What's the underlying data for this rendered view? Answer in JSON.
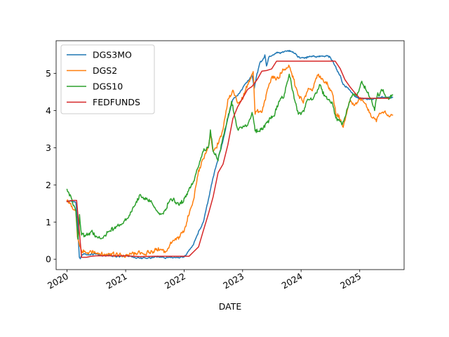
{
  "chart_data": {
    "type": "line",
    "title": "",
    "xlabel": "DATE",
    "ylabel": "",
    "xlim": [
      "2019-10-25",
      "2025-10-05"
    ],
    "ylim": [
      -0.28,
      5.88
    ],
    "x_ticks": [
      "2020",
      "2021",
      "2022",
      "2023",
      "2024",
      "2025"
    ],
    "y_ticks": [
      "0",
      "1",
      "2",
      "3",
      "4",
      "5"
    ],
    "grid": false,
    "legend_position": "upper left",
    "series": [
      {
        "name": "DGS3MO",
        "color": "#1f77b4",
        "points": [
          [
            "2020-01-01",
            1.55
          ],
          [
            "2020-02-01",
            1.56
          ],
          [
            "2020-02-25",
            1.52
          ],
          [
            "2020-03-06",
            1.1
          ],
          [
            "2020-03-12",
            0.5
          ],
          [
            "2020-03-18",
            0.05
          ],
          [
            "2020-03-24",
            0.01
          ],
          [
            "2020-04-01",
            0.09
          ],
          [
            "2020-04-15",
            0.15
          ],
          [
            "2020-05-01",
            0.12
          ],
          [
            "2020-06-01",
            0.15
          ],
          [
            "2020-08-01",
            0.1
          ],
          [
            "2020-10-01",
            0.1
          ],
          [
            "2020-12-01",
            0.08
          ],
          [
            "2021-01-15",
            0.08
          ],
          [
            "2021-03-01",
            0.04
          ],
          [
            "2021-04-15",
            0.02
          ],
          [
            "2021-06-01",
            0.04
          ],
          [
            "2021-08-01",
            0.05
          ],
          [
            "2021-10-01",
            0.05
          ],
          [
            "2021-11-15",
            0.05
          ],
          [
            "2022-01-01",
            0.06
          ],
          [
            "2022-02-01",
            0.25
          ],
          [
            "2022-03-01",
            0.4
          ],
          [
            "2022-04-01",
            0.75
          ],
          [
            "2022-05-01",
            1.0
          ],
          [
            "2022-06-01",
            1.6
          ],
          [
            "2022-07-01",
            2.2
          ],
          [
            "2022-08-01",
            2.7
          ],
          [
            "2022-09-01",
            3.2
          ],
          [
            "2022-10-01",
            3.8
          ],
          [
            "2022-11-01",
            4.3
          ],
          [
            "2022-12-01",
            4.4
          ],
          [
            "2023-01-01",
            4.6
          ],
          [
            "2023-02-01",
            4.8
          ],
          [
            "2023-03-01",
            4.95
          ],
          [
            "2023-03-15",
            4.6
          ],
          [
            "2023-04-01",
            5.0
          ],
          [
            "2023-04-20",
            5.3
          ],
          [
            "2023-05-05",
            5.35
          ],
          [
            "2023-05-20",
            5.5
          ],
          [
            "2023-05-30",
            5.2
          ],
          [
            "2023-06-15",
            5.45
          ],
          [
            "2023-07-01",
            5.47
          ],
          [
            "2023-08-01",
            5.55
          ],
          [
            "2023-09-01",
            5.56
          ],
          [
            "2023-10-01",
            5.6
          ],
          [
            "2023-10-20",
            5.62
          ],
          [
            "2023-11-15",
            5.55
          ],
          [
            "2023-12-15",
            5.45
          ],
          [
            "2024-01-15",
            5.42
          ],
          [
            "2024-02-15",
            5.45
          ],
          [
            "2024-03-15",
            5.46
          ],
          [
            "2024-04-15",
            5.45
          ],
          [
            "2024-05-15",
            5.46
          ],
          [
            "2024-06-15",
            5.48
          ],
          [
            "2024-07-15",
            5.35
          ],
          [
            "2024-08-01",
            5.2
          ],
          [
            "2024-08-15",
            5.05
          ],
          [
            "2024-09-01",
            4.95
          ],
          [
            "2024-09-15",
            4.75
          ],
          [
            "2024-10-01",
            4.65
          ],
          [
            "2024-11-01",
            4.55
          ],
          [
            "2024-12-01",
            4.38
          ],
          [
            "2025-01-01",
            4.32
          ],
          [
            "2025-02-01",
            4.32
          ],
          [
            "2025-03-01",
            4.3
          ],
          [
            "2025-04-01",
            4.32
          ],
          [
            "2025-05-01",
            4.35
          ],
          [
            "2025-06-01",
            4.36
          ],
          [
            "2025-07-01",
            4.35
          ],
          [
            "2025-07-25",
            4.36
          ]
        ]
      },
      {
        "name": "DGS2",
        "color": "#ff7f0e",
        "points": [
          [
            "2020-01-01",
            1.58
          ],
          [
            "2020-02-01",
            1.42
          ],
          [
            "2020-02-25",
            1.3
          ],
          [
            "2020-03-06",
            0.6
          ],
          [
            "2020-03-12",
            0.5
          ],
          [
            "2020-03-20",
            0.35
          ],
          [
            "2020-04-01",
            0.23
          ],
          [
            "2020-05-01",
            0.17
          ],
          [
            "2020-06-01",
            0.19
          ],
          [
            "2020-08-01",
            0.13
          ],
          [
            "2020-10-01",
            0.15
          ],
          [
            "2020-12-01",
            0.12
          ],
          [
            "2021-01-15",
            0.12
          ],
          [
            "2021-03-01",
            0.14
          ],
          [
            "2021-04-15",
            0.16
          ],
          [
            "2021-06-01",
            0.15
          ],
          [
            "2021-07-01",
            0.25
          ],
          [
            "2021-09-01",
            0.22
          ],
          [
            "2021-10-01",
            0.35
          ],
          [
            "2021-11-01",
            0.5
          ],
          [
            "2021-12-01",
            0.6
          ],
          [
            "2022-01-01",
            0.75
          ],
          [
            "2022-02-01",
            1.2
          ],
          [
            "2022-03-01",
            1.6
          ],
          [
            "2022-04-01",
            2.4
          ],
          [
            "2022-05-01",
            2.7
          ],
          [
            "2022-06-01",
            3.0
          ],
          [
            "2022-06-15",
            3.4
          ],
          [
            "2022-07-01",
            2.9
          ],
          [
            "2022-08-01",
            3.1
          ],
          [
            "2022-08-20",
            3.3
          ],
          [
            "2022-09-01",
            3.5
          ],
          [
            "2022-09-20",
            4.0
          ],
          [
            "2022-10-01",
            4.3
          ],
          [
            "2022-11-01",
            4.55
          ],
          [
            "2022-11-15",
            4.4
          ],
          [
            "2022-12-01",
            4.2
          ],
          [
            "2023-01-01",
            4.3
          ],
          [
            "2023-02-01",
            4.7
          ],
          [
            "2023-03-08",
            5.05
          ],
          [
            "2023-03-20",
            3.9
          ],
          [
            "2023-04-01",
            4.0
          ],
          [
            "2023-05-01",
            3.95
          ],
          [
            "2023-05-15",
            4.2
          ],
          [
            "2023-06-01",
            4.5
          ],
          [
            "2023-07-01",
            4.9
          ],
          [
            "2023-08-01",
            4.85
          ],
          [
            "2023-09-01",
            5.0
          ],
          [
            "2023-10-01",
            5.15
          ],
          [
            "2023-10-20",
            5.18
          ],
          [
            "2023-11-15",
            4.85
          ],
          [
            "2023-12-15",
            4.4
          ],
          [
            "2024-01-15",
            4.2
          ],
          [
            "2024-02-15",
            4.6
          ],
          [
            "2024-03-15",
            4.6
          ],
          [
            "2024-04-15",
            4.95
          ],
          [
            "2024-05-15",
            4.85
          ],
          [
            "2024-06-15",
            4.7
          ],
          [
            "2024-07-15",
            4.45
          ],
          [
            "2024-08-05",
            3.9
          ],
          [
            "2024-09-01",
            3.75
          ],
          [
            "2024-09-20",
            3.55
          ],
          [
            "2024-10-15",
            4.0
          ],
          [
            "2024-11-01",
            4.25
          ],
          [
            "2024-12-01",
            4.15
          ],
          [
            "2025-01-01",
            4.3
          ],
          [
            "2025-02-01",
            4.2
          ],
          [
            "2025-03-01",
            3.95
          ],
          [
            "2025-04-01",
            3.8
          ],
          [
            "2025-04-15",
            3.7
          ],
          [
            "2025-05-01",
            3.9
          ],
          [
            "2025-06-01",
            3.95
          ],
          [
            "2025-07-01",
            3.85
          ],
          [
            "2025-07-25",
            3.88
          ]
        ]
      },
      {
        "name": "DGS10",
        "color": "#2ca02c",
        "points": [
          [
            "2020-01-01",
            1.88
          ],
          [
            "2020-02-01",
            1.6
          ],
          [
            "2020-02-25",
            1.3
          ],
          [
            "2020-03-09",
            0.54
          ],
          [
            "2020-03-15",
            0.8
          ],
          [
            "2020-03-19",
            1.2
          ],
          [
            "2020-04-01",
            0.65
          ],
          [
            "2020-05-01",
            0.65
          ],
          [
            "2020-06-01",
            0.75
          ],
          [
            "2020-08-01",
            0.55
          ],
          [
            "2020-10-01",
            0.75
          ],
          [
            "2020-12-01",
            0.92
          ],
          [
            "2021-01-15",
            1.1
          ],
          [
            "2021-03-01",
            1.45
          ],
          [
            "2021-03-31",
            1.74
          ],
          [
            "2021-05-01",
            1.6
          ],
          [
            "2021-06-01",
            1.55
          ],
          [
            "2021-07-01",
            1.4
          ],
          [
            "2021-08-01",
            1.2
          ],
          [
            "2021-09-01",
            1.3
          ],
          [
            "2021-10-01",
            1.55
          ],
          [
            "2021-11-01",
            1.6
          ],
          [
            "2021-12-01",
            1.45
          ],
          [
            "2022-01-01",
            1.65
          ],
          [
            "2022-02-01",
            1.9
          ],
          [
            "2022-03-01",
            2.1
          ],
          [
            "2022-04-01",
            2.5
          ],
          [
            "2022-05-01",
            2.9
          ],
          [
            "2022-06-01",
            3.0
          ],
          [
            "2022-06-14",
            3.48
          ],
          [
            "2022-07-01",
            2.9
          ],
          [
            "2022-08-01",
            2.65
          ],
          [
            "2022-09-01",
            3.3
          ],
          [
            "2022-10-01",
            3.8
          ],
          [
            "2022-10-24",
            4.25
          ],
          [
            "2022-11-15",
            3.8
          ],
          [
            "2022-12-01",
            3.5
          ],
          [
            "2023-01-01",
            3.55
          ],
          [
            "2023-02-01",
            3.6
          ],
          [
            "2023-03-01",
            3.95
          ],
          [
            "2023-03-20",
            3.45
          ],
          [
            "2023-04-15",
            3.45
          ],
          [
            "2023-05-15",
            3.6
          ],
          [
            "2023-06-15",
            3.75
          ],
          [
            "2023-07-15",
            3.85
          ],
          [
            "2023-08-15",
            4.25
          ],
          [
            "2023-09-15",
            4.35
          ],
          [
            "2023-10-19",
            4.98
          ],
          [
            "2023-11-15",
            4.45
          ],
          [
            "2023-12-15",
            3.9
          ],
          [
            "2024-01-15",
            4.0
          ],
          [
            "2024-02-15",
            4.3
          ],
          [
            "2024-03-15",
            4.3
          ],
          [
            "2024-04-25",
            4.7
          ],
          [
            "2024-05-15",
            4.45
          ],
          [
            "2024-06-15",
            4.3
          ],
          [
            "2024-07-15",
            4.2
          ],
          [
            "2024-08-05",
            3.8
          ],
          [
            "2024-09-15",
            3.63
          ],
          [
            "2024-10-15",
            4.05
          ],
          [
            "2024-11-15",
            4.4
          ],
          [
            "2024-12-15",
            4.4
          ],
          [
            "2025-01-14",
            4.79
          ],
          [
            "2025-02-15",
            4.5
          ],
          [
            "2025-03-15",
            4.3
          ],
          [
            "2025-04-04",
            4.0
          ],
          [
            "2025-04-20",
            4.4
          ],
          [
            "2025-05-20",
            4.55
          ],
          [
            "2025-06-15",
            4.35
          ],
          [
            "2025-07-01",
            4.3
          ],
          [
            "2025-07-25",
            4.42
          ]
        ]
      },
      {
        "name": "FEDFUNDS",
        "color": "#d62728",
        "points": [
          [
            "2020-01-01",
            1.55
          ],
          [
            "2020-02-01",
            1.58
          ],
          [
            "2020-03-01",
            1.58
          ],
          [
            "2020-04-01",
            0.05
          ],
          [
            "2020-05-01",
            0.05
          ],
          [
            "2020-06-01",
            0.08
          ],
          [
            "2020-07-01",
            0.09
          ],
          [
            "2020-10-01",
            0.09
          ],
          [
            "2021-01-01",
            0.09
          ],
          [
            "2021-04-01",
            0.07
          ],
          [
            "2021-07-01",
            0.08
          ],
          [
            "2021-10-01",
            0.08
          ],
          [
            "2022-01-01",
            0.08
          ],
          [
            "2022-02-01",
            0.08
          ],
          [
            "2022-03-01",
            0.2
          ],
          [
            "2022-04-01",
            0.33
          ],
          [
            "2022-05-01",
            0.77
          ],
          [
            "2022-06-01",
            1.21
          ],
          [
            "2022-07-01",
            1.68
          ],
          [
            "2022-08-01",
            2.33
          ],
          [
            "2022-09-01",
            2.56
          ],
          [
            "2022-10-01",
            3.08
          ],
          [
            "2022-11-01",
            3.78
          ],
          [
            "2022-12-01",
            4.1
          ],
          [
            "2023-01-01",
            4.33
          ],
          [
            "2023-02-01",
            4.57
          ],
          [
            "2023-03-01",
            4.65
          ],
          [
            "2023-04-01",
            4.83
          ],
          [
            "2023-05-01",
            5.06
          ],
          [
            "2023-06-01",
            5.08
          ],
          [
            "2023-07-01",
            5.12
          ],
          [
            "2023-08-01",
            5.33
          ],
          [
            "2023-12-01",
            5.33
          ],
          [
            "2024-03-01",
            5.33
          ],
          [
            "2024-06-01",
            5.33
          ],
          [
            "2024-08-01",
            5.33
          ],
          [
            "2024-09-01",
            5.13
          ],
          [
            "2024-10-01",
            4.83
          ],
          [
            "2024-11-01",
            4.64
          ],
          [
            "2024-12-01",
            4.48
          ],
          [
            "2025-01-01",
            4.33
          ],
          [
            "2025-02-01",
            4.33
          ],
          [
            "2025-04-01",
            4.33
          ],
          [
            "2025-06-01",
            4.33
          ],
          [
            "2025-07-01",
            4.33
          ]
        ]
      }
    ]
  }
}
